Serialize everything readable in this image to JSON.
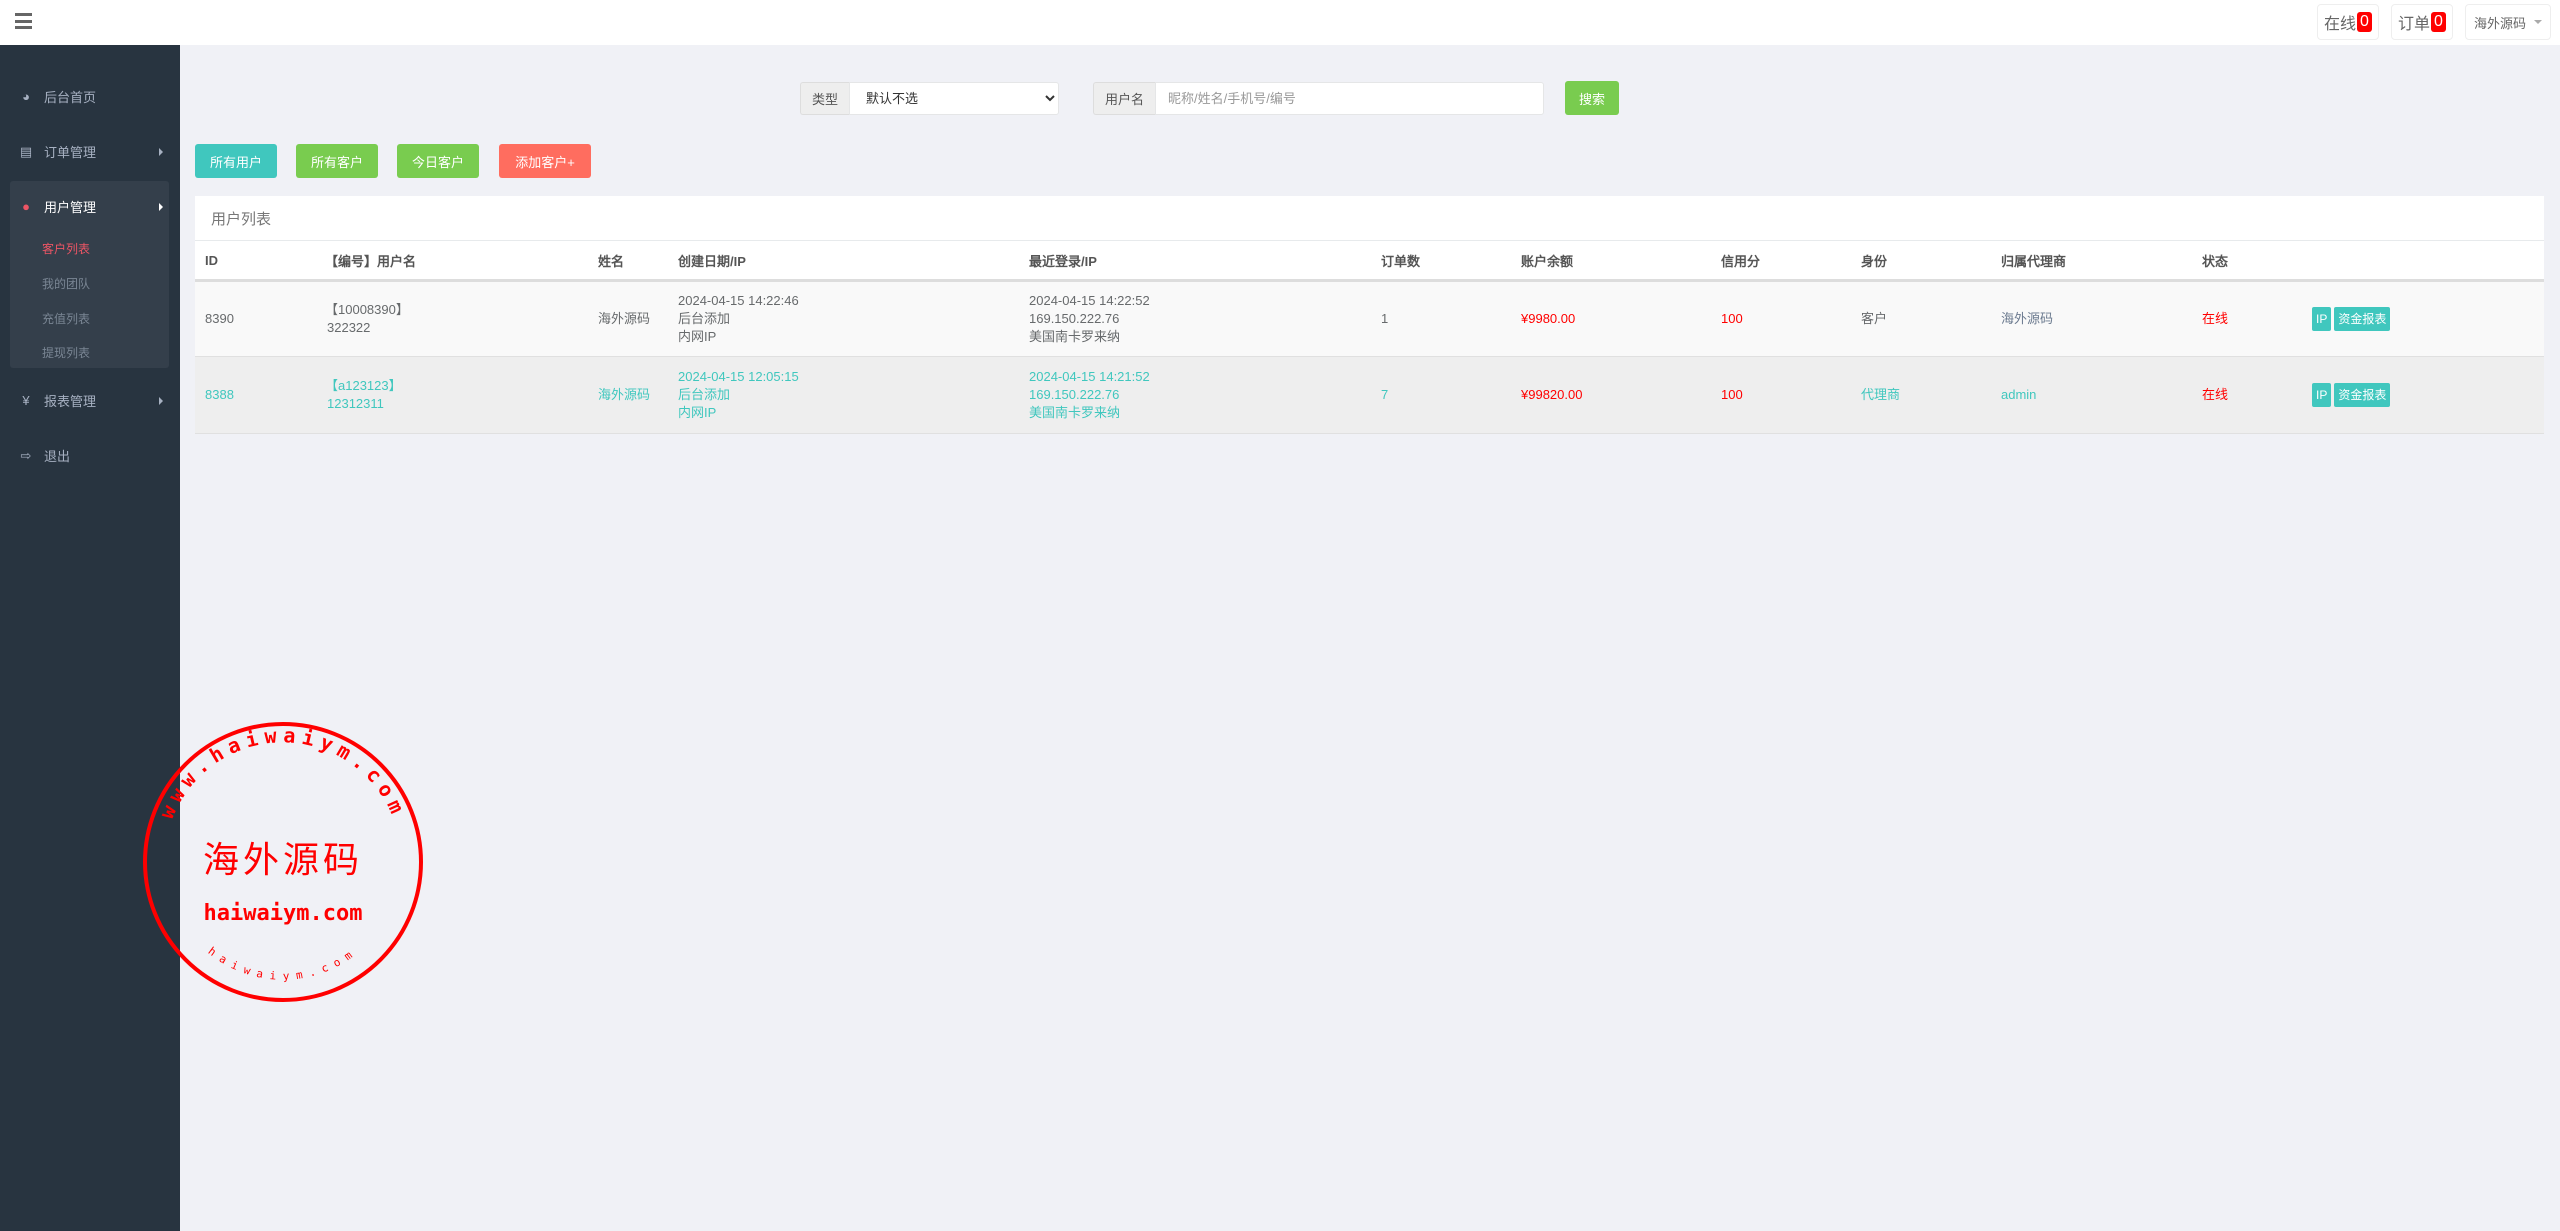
{
  "topbar": {
    "online_label": "在线",
    "online_count": "0",
    "orders_label": "订单",
    "orders_count": "0",
    "user": "海外源码"
  },
  "sidebar": {
    "items": [
      {
        "label": "后台首页",
        "icon": "dashboard-icon"
      },
      {
        "label": "订单管理",
        "icon": "file-copy-icon"
      },
      {
        "label": "用户管理",
        "icon": "user-icon",
        "children": [
          {
            "label": "客户列表",
            "active": true
          },
          {
            "label": "我的团队"
          },
          {
            "label": "充值列表"
          },
          {
            "label": "提现列表"
          }
        ]
      },
      {
        "label": "报表管理",
        "icon": "yen-icon"
      },
      {
        "label": "退出",
        "icon": "sign-out-icon"
      }
    ]
  },
  "search": {
    "type_label": "类型",
    "type_value": "默认不选",
    "username_label": "用户名",
    "username_placeholder": "昵称/姓名/手机号/编号",
    "username_value": "",
    "search_button": "搜索"
  },
  "actions": {
    "all_users": "所有用户",
    "all_customers": "所有客户",
    "today_customers": "今日客户",
    "add_customer": "添加客户+"
  },
  "colors": {
    "sidebar": "#283440",
    "teal": "#40c7be",
    "green": "#79cc4f",
    "coral": "#ff6d5f",
    "red": "#ff0000"
  },
  "table": {
    "title": "用户列表",
    "headers": [
      "ID",
      "【编号】用户名",
      "姓名",
      "创建日期/IP",
      "最近登录/IP",
      "订单数",
      "账户余额",
      "信用分",
      "身份",
      "归属代理商",
      "状态",
      ""
    ],
    "rows": [
      {
        "id": "8390",
        "code": "【10008390】",
        "username": "322322",
        "name": "海外源码",
        "created": "2024-04-15 14:22:46",
        "created_by": "后台添加",
        "created_ip": "内网IP",
        "last_login": "2024-04-15 14:22:52",
        "last_ip": "169.150.222.76",
        "last_loc": "美国南卡罗来纳",
        "orders": "1",
        "balance": "¥9980.00",
        "credit": "100",
        "role": "客户",
        "agent": "海外源码",
        "status": "在线",
        "btn_ip": "IP",
        "btn_report": "资金报表"
      },
      {
        "id": "8388",
        "code": "【a123123】",
        "username": "12312311",
        "name": "海外源码",
        "created": "2024-04-15 12:05:15",
        "created_by": "后台添加",
        "created_ip": "内网IP",
        "last_login": "2024-04-15 14:21:52",
        "last_ip": "169.150.222.76",
        "last_loc": "美国南卡罗来纳",
        "orders": "7",
        "balance": "¥99820.00",
        "credit": "100",
        "role": "代理商",
        "agent": "admin",
        "status": "在线",
        "btn_ip": "IP",
        "btn_report": "资金报表"
      }
    ]
  },
  "watermark": {
    "center": "海外源码",
    "domain": "haiwaiym.com",
    "ring_top": "www.haiwaiym.com",
    "ring_bottom": "haiwaiym.com"
  }
}
